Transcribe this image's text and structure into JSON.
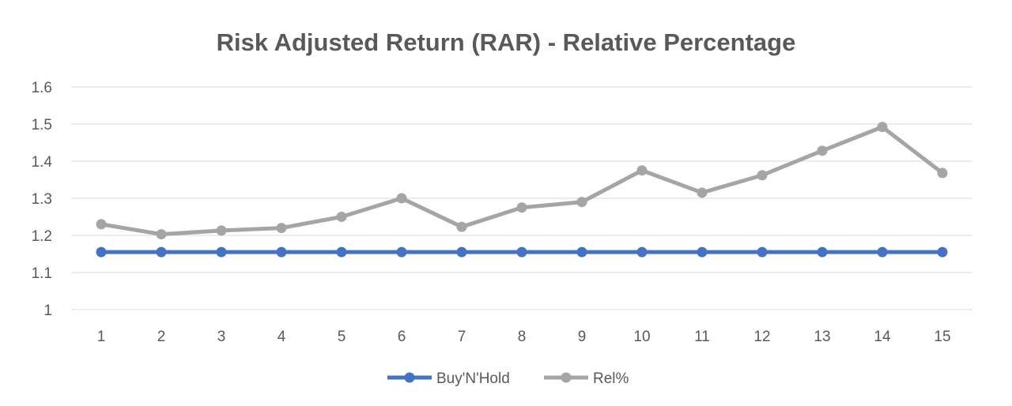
{
  "chart_data": {
    "type": "line",
    "title": "Risk Adjusted Return (RAR) - Relative Percentage",
    "xlabel": "",
    "ylabel": "",
    "categories": [
      "1",
      "2",
      "3",
      "4",
      "5",
      "6",
      "7",
      "8",
      "9",
      "10",
      "11",
      "12",
      "13",
      "14",
      "15"
    ],
    "ylim": [
      1,
      1.6
    ],
    "yticks": [
      "1.6",
      "1.5",
      "1.4",
      "1.3",
      "1.2",
      "1.1",
      "1"
    ],
    "ytick_values": [
      1.6,
      1.5,
      1.4,
      1.3,
      1.2,
      1.1,
      1.0
    ],
    "grid": true,
    "legend_position": "bottom",
    "series": [
      {
        "name": "Buy'N'Hold",
        "color": "#4472c4",
        "values": [
          1.155,
          1.155,
          1.155,
          1.155,
          1.155,
          1.155,
          1.155,
          1.155,
          1.155,
          1.155,
          1.155,
          1.155,
          1.155,
          1.155,
          1.155
        ]
      },
      {
        "name": "Rel%",
        "color": "#a5a5a5",
        "values": [
          1.23,
          1.203,
          1.213,
          1.22,
          1.25,
          1.3,
          1.223,
          1.275,
          1.29,
          1.375,
          1.315,
          1.362,
          1.428,
          1.492,
          1.368
        ]
      }
    ]
  }
}
